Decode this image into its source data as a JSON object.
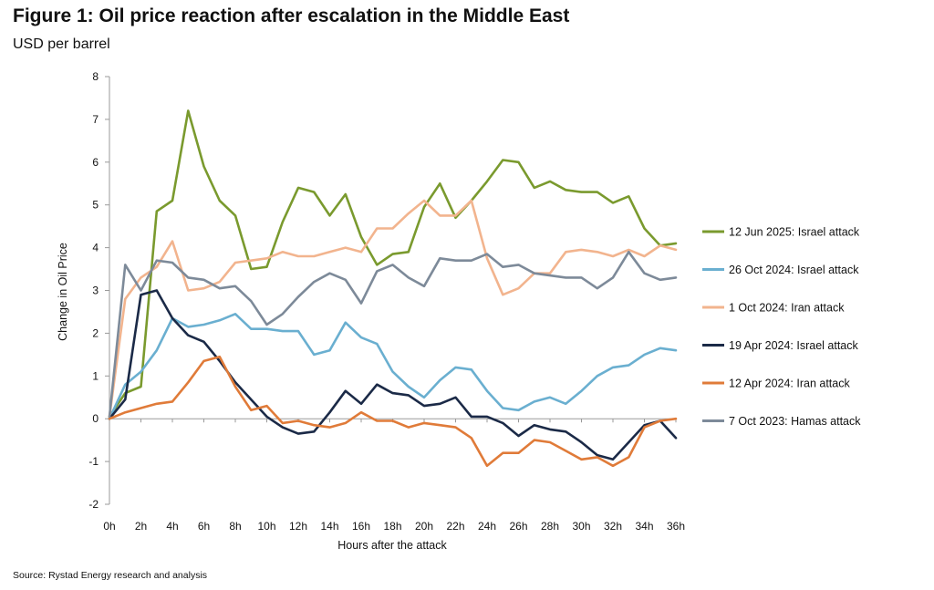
{
  "header": {
    "title": "Figure 1: Oil price reaction after escalation in the Middle East",
    "subtitle": "USD per barrel"
  },
  "footer": {
    "source": "Source: Rystad Energy research and analysis"
  },
  "chart_data": {
    "type": "line",
    "title": "Figure 1: Oil price reaction after escalation in the Middle East",
    "subtitle": "USD per barrel",
    "xlabel": "Hours after the attack",
    "ylabel": "Change in Oil Price",
    "ylim": [
      -2,
      8
    ],
    "yticks": [
      "-2",
      "-1",
      "0",
      "1",
      "2",
      "3",
      "4",
      "5",
      "6",
      "7",
      "8"
    ],
    "x": [
      0,
      1,
      2,
      3,
      4,
      5,
      6,
      7,
      8,
      9,
      10,
      11,
      12,
      13,
      14,
      15,
      16,
      17,
      18,
      19,
      20,
      21,
      22,
      23,
      24,
      25,
      26,
      27,
      28,
      29,
      30,
      31,
      32,
      33,
      34,
      35,
      36
    ],
    "xticks": [
      "0h",
      "2h",
      "4h",
      "6h",
      "8h",
      "10h",
      "12h",
      "14h",
      "16h",
      "18h",
      "20h",
      "22h",
      "24h",
      "26h",
      "28h",
      "30h",
      "32h",
      "34h",
      "36h"
    ],
    "grid": false,
    "legend_position": "right",
    "series": [
      {
        "name": "12 Jun 2025: Israel attack",
        "color": "#7a9a2e",
        "values": [
          0.05,
          0.6,
          0.75,
          4.85,
          5.1,
          7.2,
          5.9,
          5.1,
          4.75,
          3.5,
          3.55,
          4.6,
          5.4,
          5.3,
          4.75,
          5.25,
          4.25,
          3.6,
          3.85,
          3.9,
          4.95,
          5.5,
          4.7,
          5.1,
          5.55,
          6.05,
          6.0,
          5.4,
          5.55,
          5.35,
          5.3,
          5.3,
          5.05,
          5.2,
          4.45,
          4.05,
          4.1
        ]
      },
      {
        "name": "26 Oct 2024: Israel attack",
        "color": "#6aafd0",
        "values": [
          0.0,
          0.8,
          1.1,
          1.6,
          2.35,
          2.15,
          2.2,
          2.3,
          2.45,
          2.1,
          2.1,
          2.05,
          2.05,
          1.5,
          1.6,
          2.25,
          1.9,
          1.75,
          1.1,
          0.75,
          0.5,
          0.9,
          1.2,
          1.15,
          0.65,
          0.25,
          0.2,
          0.4,
          0.5,
          0.35,
          0.65,
          1.0,
          1.2,
          1.25,
          1.5,
          1.65,
          1.6
        ]
      },
      {
        "name": "1 Oct 2024: Iran attack",
        "color": "#f2b48e",
        "values": [
          0.05,
          2.8,
          3.3,
          3.55,
          4.15,
          3.0,
          3.05,
          3.2,
          3.65,
          3.7,
          3.75,
          3.9,
          3.8,
          3.8,
          3.9,
          4.0,
          3.9,
          4.45,
          4.45,
          4.8,
          5.1,
          4.75,
          4.75,
          5.1,
          3.75,
          2.9,
          3.05,
          3.4,
          3.4,
          3.9,
          3.95,
          3.9,
          3.8,
          3.95,
          3.8,
          4.05,
          3.95
        ]
      },
      {
        "name": "19 Apr 2024: Israel attack",
        "color": "#1b2a47",
        "values": [
          0.0,
          0.45,
          2.9,
          3.0,
          2.35,
          1.95,
          1.8,
          1.35,
          0.85,
          0.45,
          0.05,
          -0.2,
          -0.35,
          -0.3,
          0.15,
          0.65,
          0.35,
          0.8,
          0.6,
          0.55,
          0.3,
          0.35,
          0.5,
          0.05,
          0.05,
          -0.1,
          -0.4,
          -0.15,
          -0.25,
          -0.3,
          -0.55,
          -0.85,
          -0.95,
          -0.55,
          -0.15,
          -0.05,
          -0.45
        ]
      },
      {
        "name": "12 Apr 2024: Iran attack",
        "color": "#e07b39",
        "values": [
          0.0,
          0.15,
          0.25,
          0.35,
          0.4,
          0.85,
          1.35,
          1.45,
          0.75,
          0.2,
          0.3,
          -0.1,
          -0.05,
          -0.15,
          -0.2,
          -0.1,
          0.15,
          -0.05,
          -0.05,
          -0.2,
          -0.1,
          -0.15,
          -0.2,
          -0.45,
          -1.1,
          -0.8,
          -0.8,
          -0.5,
          -0.55,
          -0.75,
          -0.95,
          -0.9,
          -1.1,
          -0.9,
          -0.2,
          -0.05,
          0.0
        ]
      },
      {
        "name": "7 Oct 2023: Hamas attack",
        "color": "#7d8a99",
        "values": [
          0.05,
          3.6,
          3.0,
          3.7,
          3.65,
          3.3,
          3.25,
          3.05,
          3.1,
          2.75,
          2.2,
          2.45,
          2.85,
          3.2,
          3.4,
          3.25,
          2.7,
          3.45,
          3.6,
          3.3,
          3.1,
          3.75,
          3.7,
          3.7,
          3.85,
          3.55,
          3.6,
          3.4,
          3.35,
          3.3,
          3.3,
          3.05,
          3.3,
          3.9,
          3.4,
          3.25,
          3.3
        ]
      }
    ]
  }
}
